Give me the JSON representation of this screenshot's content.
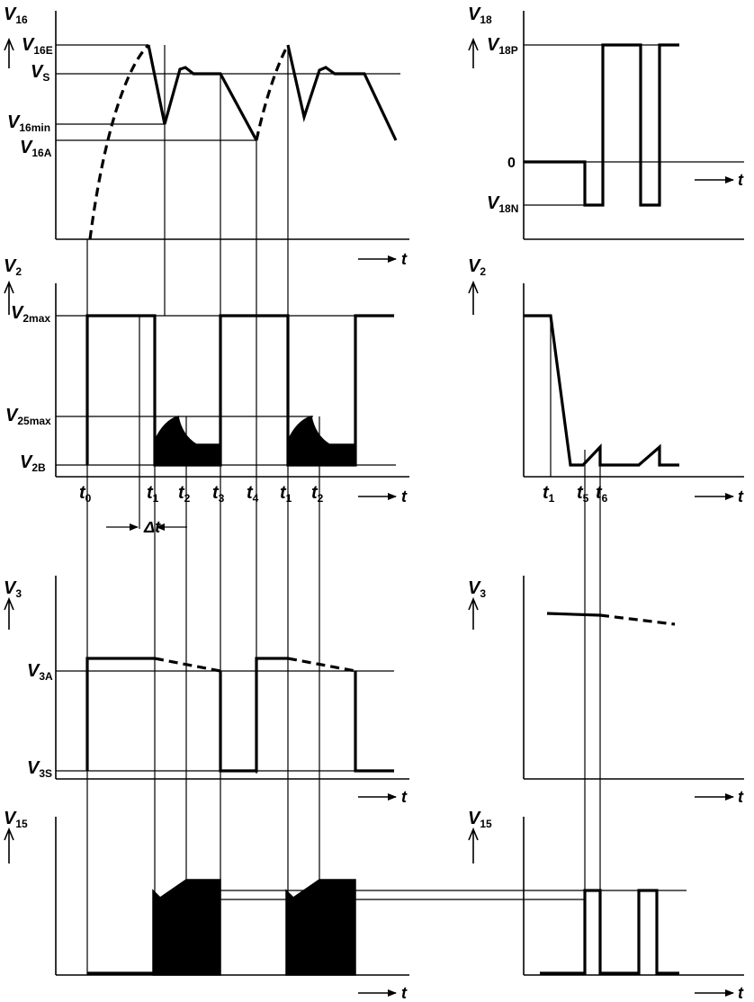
{
  "labels": {
    "v16": {
      "main": "V",
      "sub": "16"
    },
    "v16e": {
      "main": "V",
      "sub": "16E"
    },
    "vs": {
      "main": "V",
      "sub": "S"
    },
    "v16min": {
      "main": "V",
      "sub": "16min"
    },
    "v16a": {
      "main": "V",
      "sub": "16A"
    },
    "v18": {
      "main": "V",
      "sub": "18"
    },
    "v18p": {
      "main": "V",
      "sub": "18P"
    },
    "zero": "0",
    "v18n": {
      "main": "V",
      "sub": "18N"
    },
    "v2_left": {
      "main": "V",
      "sub": "2"
    },
    "v2max": {
      "main": "V",
      "sub": "2max"
    },
    "v25max": {
      "main": "V",
      "sub": "25max"
    },
    "v2b": {
      "main": "V",
      "sub": "2B"
    },
    "v2_right": {
      "main": "V",
      "sub": "2"
    },
    "t0": {
      "main": "t",
      "sub": "0"
    },
    "t1a": {
      "main": "t",
      "sub": "1"
    },
    "t2a": {
      "main": "t",
      "sub": "2"
    },
    "t3": {
      "main": "t",
      "sub": "3"
    },
    "t4": {
      "main": "t",
      "sub": "4"
    },
    "t1b": {
      "main": "t",
      "sub": "1"
    },
    "t2b": {
      "main": "t",
      "sub": "2"
    },
    "t1r": {
      "main": "t",
      "sub": "1"
    },
    "t5": {
      "main": "t",
      "sub": "5"
    },
    "t6": {
      "main": "t",
      "sub": "6"
    },
    "delta_t": "Δt",
    "v3_left": {
      "main": "V",
      "sub": "3"
    },
    "v3a": {
      "main": "V",
      "sub": "3A"
    },
    "v3s": {
      "main": "V",
      "sub": "3S"
    },
    "v3_right": {
      "main": "V",
      "sub": "3"
    },
    "v15_left": {
      "main": "V",
      "sub": "15"
    },
    "v15_right": {
      "main": "V",
      "sub": "15"
    },
    "t_axis": "t"
  }
}
